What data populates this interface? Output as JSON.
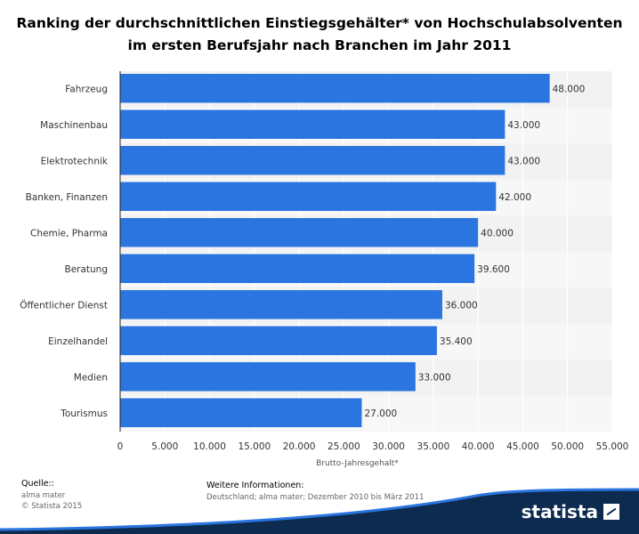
{
  "title_line1": "Ranking der durchschnittlichen Einstiegsgehälter* von Hochschulabsolventen",
  "title_line2": "im ersten Berufsjahr nach Branchen im Jahr 2011",
  "chart_data": {
    "type": "bar",
    "orientation": "horizontal",
    "title": "Ranking der durchschnittlichen Einstiegsgehälter* von Hochschulabsolventen im ersten Berufsjahr nach Branchen im Jahr 2011",
    "categories": [
      "Fahrzeug",
      "Maschinenbau",
      "Elektrotechnik",
      "Banken, Finanzen",
      "Chemie, Pharma",
      "Beratung",
      "Öffentlicher Dienst",
      "Einzelhandel",
      "Medien",
      "Tourismus"
    ],
    "values": [
      48000,
      43000,
      43000,
      42000,
      40000,
      39600,
      36000,
      35400,
      33000,
      27000
    ],
    "value_labels": [
      "48.000",
      "43.000",
      "43.000",
      "42.000",
      "40.000",
      "39.600",
      "36.000",
      "35.400",
      "33.000",
      "27.000"
    ],
    "xlabel": "Brutto-Jahresgehalt*",
    "ylabel": "",
    "xlim": [
      0,
      55000
    ],
    "ticks": [
      0,
      5000,
      10000,
      15000,
      20000,
      25000,
      30000,
      35000,
      40000,
      45000,
      50000,
      55000
    ],
    "tick_labels": [
      "0",
      "5.000",
      "10.000",
      "15.000",
      "20.000",
      "25.000",
      "30.000",
      "35.000",
      "40.000",
      "45.000",
      "50.000",
      "55.000"
    ],
    "grid": true,
    "bar_color": "#2a75df"
  },
  "footer": {
    "source_label": "Quelle::",
    "source_line1": "alma mater",
    "source_line2": "© Statista 2015",
    "info_label": "Weitere Informationen:",
    "info_text": "Deutschland; alma mater; Dezember 2010 bis März 2011",
    "brand": "statista"
  }
}
